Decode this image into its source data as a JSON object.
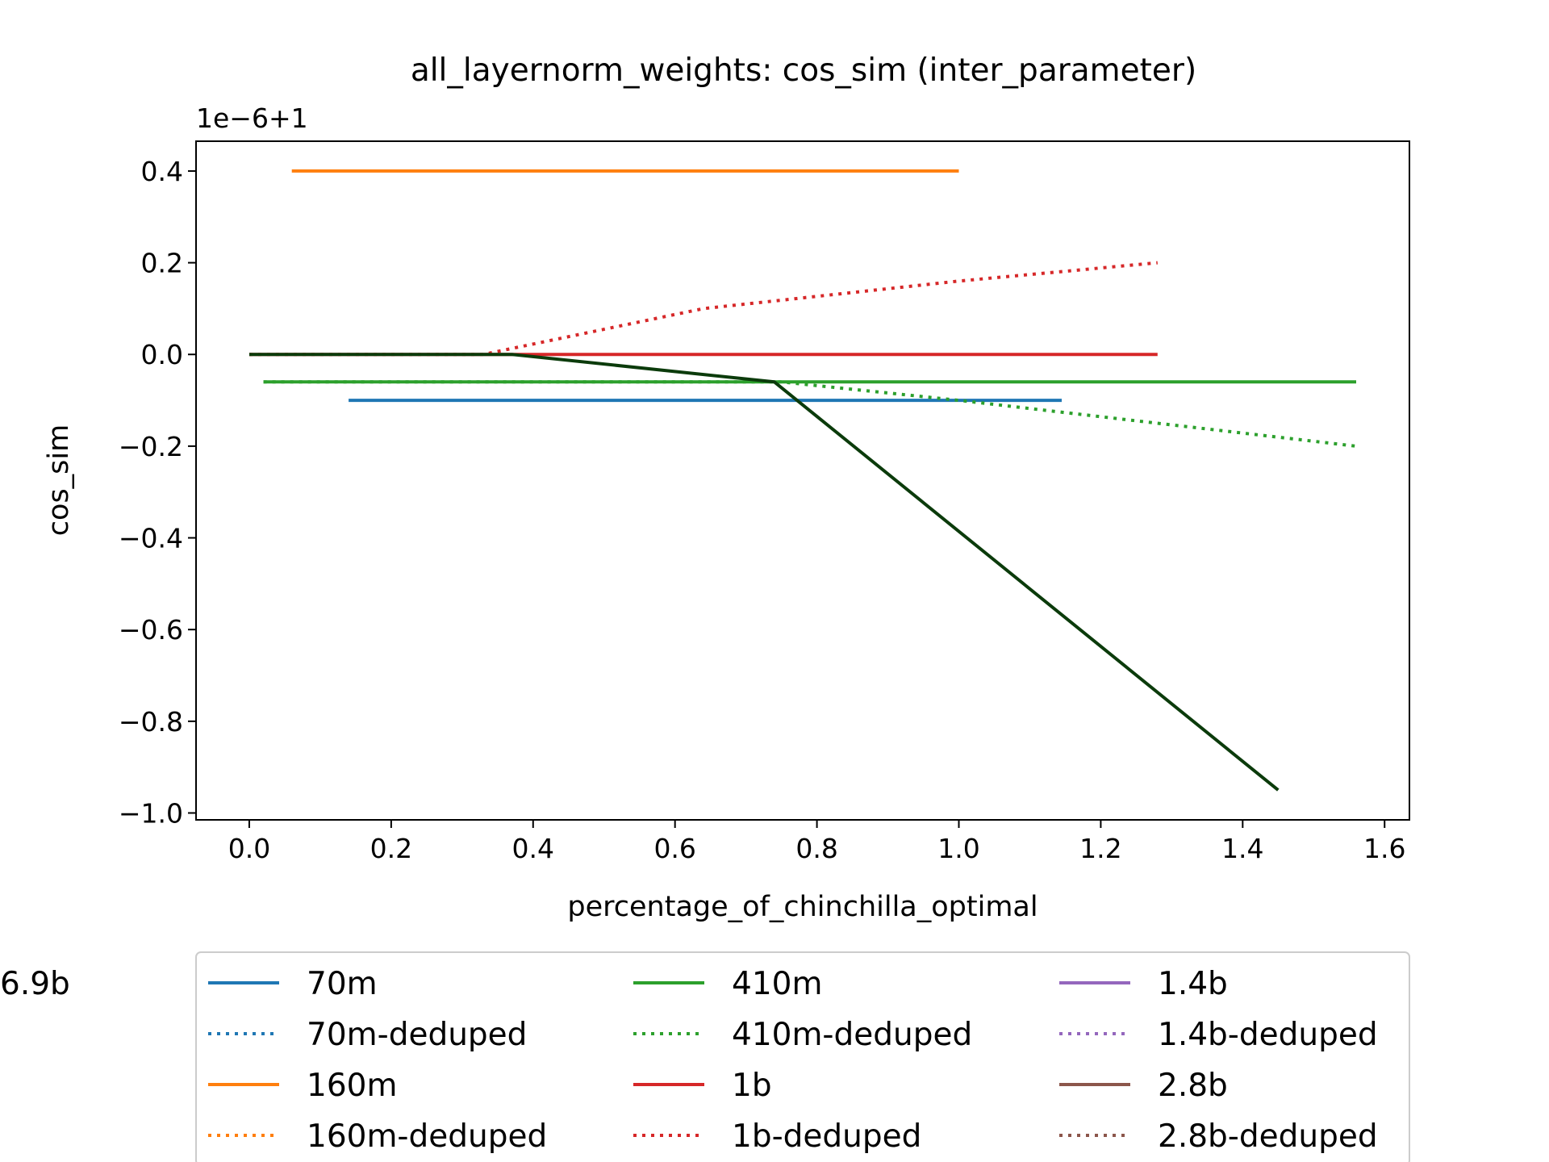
{
  "chart_data": {
    "type": "line",
    "title": "all_layernorm_weights: cos_sim (inter_parameter)",
    "xlabel": "percentage_of_chinchilla_optimal",
    "ylabel": "cos_sim",
    "y_offset_label": "1e−6+1",
    "xlim": [
      -0.075,
      1.635
    ],
    "ylim": [
      -1.015,
      0.465
    ],
    "x_ticks": [
      0.0,
      0.2,
      0.4,
      0.6,
      0.8,
      1.0,
      1.2,
      1.4,
      1.6
    ],
    "x_tick_labels": [
      "0.0",
      "0.2",
      "0.4",
      "0.6",
      "0.8",
      "1.0",
      "1.2",
      "1.4",
      "1.6"
    ],
    "y_ticks": [
      0.4,
      0.2,
      0.0,
      -0.2,
      -0.4,
      -0.6,
      -0.8,
      -1.0
    ],
    "y_tick_labels": [
      "0.4",
      "0.2",
      "0.0",
      "−0.2",
      "−0.4",
      "−0.6",
      "−0.8",
      "−1.0"
    ],
    "grid": false,
    "legend_position": "bottom",
    "series": [
      {
        "name": "70m",
        "color": "#1f77b4",
        "style": "solid",
        "x": [
          0.14,
          1.145
        ],
        "y": [
          -0.1,
          -0.1
        ]
      },
      {
        "name": "70m-deduped",
        "color": "#1f77b4",
        "style": "dotted",
        "x": [],
        "y": []
      },
      {
        "name": "160m",
        "color": "#ff7f0e",
        "style": "solid",
        "x": [
          0.06,
          1.0
        ],
        "y": [
          0.4,
          0.4
        ]
      },
      {
        "name": "160m-deduped",
        "color": "#ff7f0e",
        "style": "dotted",
        "x": [],
        "y": []
      },
      {
        "name": "410m",
        "color": "#2ca02c",
        "style": "solid",
        "x": [
          0.02,
          1.56
        ],
        "y": [
          -0.06,
          -0.06
        ]
      },
      {
        "name": "410m-deduped",
        "color": "#2ca02c",
        "style": "dotted",
        "x": [
          0.02,
          0.75,
          1.0,
          1.28,
          1.56
        ],
        "y": [
          -0.06,
          -0.06,
          -0.1,
          -0.15,
          -0.2
        ]
      },
      {
        "name": "1b",
        "color": "#d62728",
        "style": "solid",
        "x": [
          0.0,
          1.28
        ],
        "y": [
          0.0,
          0.0
        ]
      },
      {
        "name": "1b-deduped",
        "color": "#d62728",
        "style": "dotted",
        "x": [
          0.0,
          0.33,
          0.64,
          1.0,
          1.28
        ],
        "y": [
          0.0,
          0.0,
          0.1,
          0.16,
          0.2
        ]
      },
      {
        "name": "1.4b",
        "color": "#9467bd",
        "style": "solid",
        "x": [],
        "y": []
      },
      {
        "name": "1.4b-deduped",
        "color": "#9467bd",
        "style": "dotted",
        "x": [],
        "y": []
      },
      {
        "name": "2.8b",
        "color": "#8c564b",
        "style": "solid",
        "x": [],
        "y": []
      },
      {
        "name": "2.8b-deduped",
        "color": "#8c564b",
        "style": "dotted",
        "x": [],
        "y": []
      },
      {
        "name": "6.9b",
        "color": "#0b3b0b",
        "style": "solid",
        "x": [
          0.0,
          0.37,
          0.74,
          1.45
        ],
        "y": [
          0.0,
          0.0,
          -0.06,
          -0.95
        ]
      }
    ]
  }
}
